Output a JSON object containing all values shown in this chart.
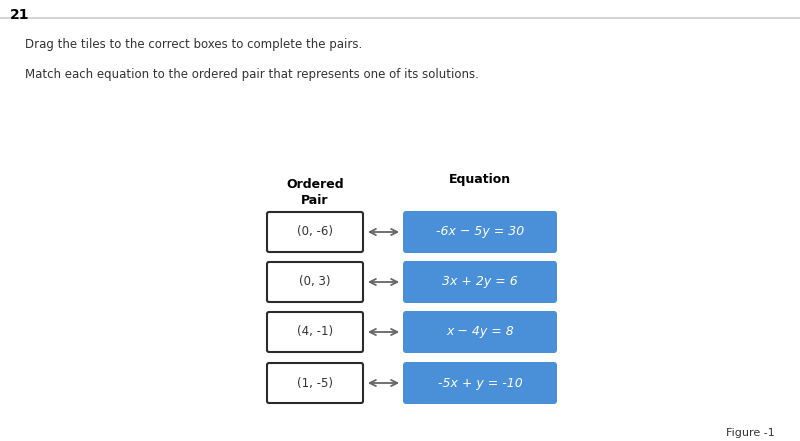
{
  "title_number": "21",
  "instruction1": "Drag the tiles to the correct boxes to complete the pairs.",
  "instruction2": "Match each equation to the ordered pair that represents one of its solutions.",
  "col1_header": "Ordered\nPair",
  "col2_header": "Equation",
  "pairs": [
    {
      "ordered_pair": "(0, -6)",
      "equation": "-6x − 5y = 30"
    },
    {
      "ordered_pair": "(0, 3)",
      "equation": "3x + 2y = 6"
    },
    {
      "ordered_pair": "(4, -1)",
      "equation": "x − 4y = 8"
    },
    {
      "ordered_pair": "(1, -5)",
      "equation": "-5x + y = -10"
    }
  ],
  "box_bg": "#4a90d9",
  "box_text_color": "#ffffff",
  "outline_box_bg": "#ffffff",
  "outline_box_border": "#2b2b2b",
  "bg_color": "#ffffff",
  "header_color": "#000000",
  "text_color": "#333333",
  "figure_label": "Figure -1",
  "top_border_color": "#cccccc"
}
